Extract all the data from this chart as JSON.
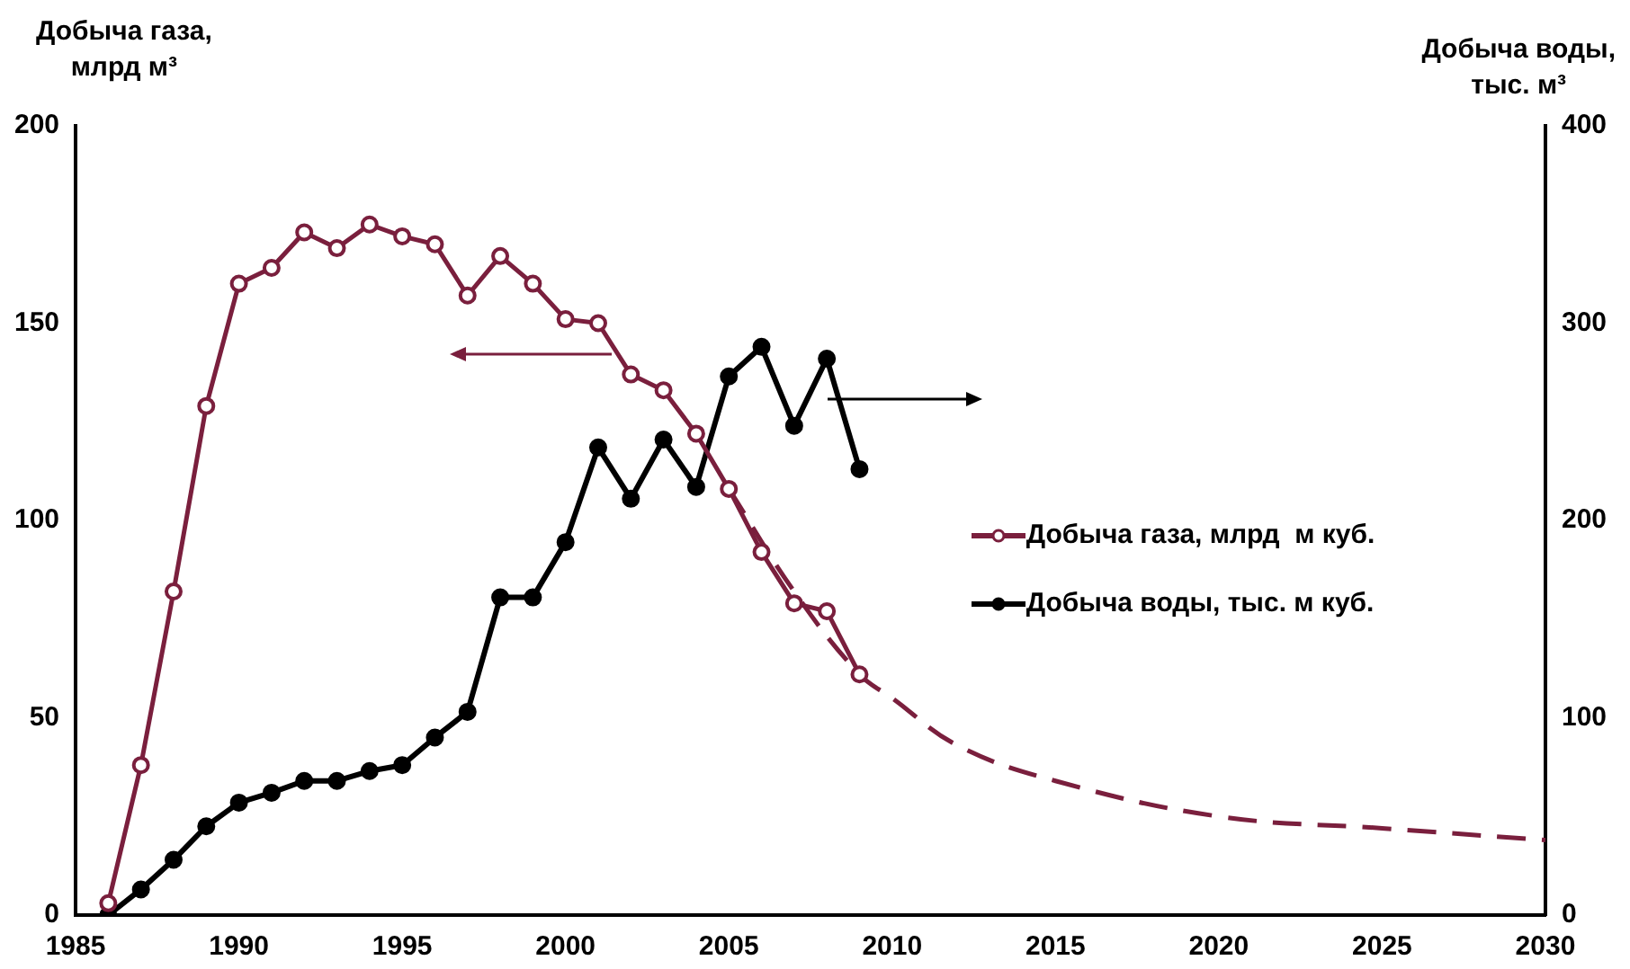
{
  "chart_data": {
    "type": "line",
    "ylabel": "Добыча газа, млрд м³",
    "y2label": "Добыча воды, тыс. м³",
    "xlim": [
      1985,
      2030
    ],
    "xticks": [
      1985,
      1990,
      1995,
      2000,
      2005,
      2010,
      2015,
      2020,
      2025,
      2030
    ],
    "ylim": [
      0,
      200
    ],
    "yticks": [
      0,
      50,
      100,
      150,
      200
    ],
    "y2lim": [
      0,
      400
    ],
    "y2ticks": [
      0,
      100,
      200,
      300,
      400
    ],
    "grid": false,
    "legend": "right",
    "marker": "circle",
    "series": [
      {
        "name": "Добыча газа, млрд  м куб.",
        "color": "#7a1f3d",
        "x": [
          1986,
          1987,
          1988,
          1989,
          1990,
          1991,
          1992,
          1993,
          1994,
          1995,
          1996,
          1997,
          1998,
          1999,
          2000,
          2001,
          2002,
          2003,
          2004,
          2005,
          2006,
          2007,
          2008,
          2009
        ],
        "values": [
          3,
          38,
          82,
          129,
          160,
          164,
          173,
          169,
          175,
          172,
          170,
          157,
          167,
          160,
          151,
          150,
          137,
          133,
          122,
          108,
          92,
          79,
          77,
          61
        ]
      },
      {
        "name": "Добыча воды, тыс. м куб.",
        "color": "#000000",
        "axis": "y2",
        "x": [
          1986,
          1987,
          1988,
          1989,
          1990,
          1991,
          1992,
          1993,
          1994,
          1995,
          1996,
          1997,
          1998,
          1999,
          2000,
          2001,
          2002,
          2003,
          2004,
          2005,
          2006,
          2007,
          2008,
          2009
        ],
        "values": [
          0,
          13,
          28,
          45,
          57,
          62,
          68,
          68,
          73,
          76,
          90,
          103,
          161,
          161,
          189,
          237,
          211,
          241,
          217,
          273,
          288,
          248,
          282,
          226
        ]
      },
      {
        "color": "#7a1f3d",
        "line_style": "dashed",
        "marker": "none",
        "x": [
          2005,
          2007,
          2009,
          2010,
          2012,
          2015,
          2020,
          2025,
          2030
        ],
        "values": [
          108,
          82,
          61,
          55,
          43,
          34,
          25,
          22,
          19
        ]
      }
    ]
  }
}
